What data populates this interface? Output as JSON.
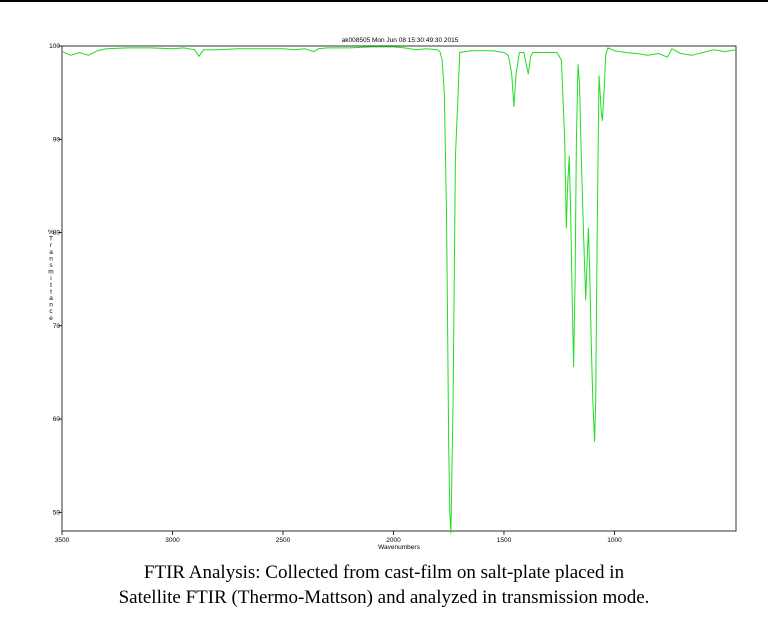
{
  "caption": {
    "line1": "FTIR Analysis: Collected from cast-film on salt-plate placed in",
    "line2": "Satellite FTIR (Thermo-Mattson) and analyzed in transmission mode."
  },
  "chart_data": {
    "type": "line",
    "title": "ak008505   Mon Jun 08 15:30:49:30 2015",
    "xlabel": "Wavenumbers",
    "ylabel": "% Transmittance",
    "xlim": [
      3500,
      450
    ],
    "ylim": [
      48,
      100
    ],
    "x_reversed": true,
    "grid": false,
    "line_color": "#22dd22",
    "x_ticks": [
      3500,
      3000,
      2500,
      2000,
      1500,
      1000
    ],
    "y_ticks": [
      50,
      60,
      70,
      80,
      90,
      100
    ],
    "series": [
      {
        "x": [
          3500,
          3460,
          3420,
          3380,
          3340,
          3300,
          3200,
          3100,
          3000,
          2950,
          2900,
          2880,
          2860,
          2800,
          2700,
          2600,
          2500,
          2450,
          2400,
          2360,
          2340,
          2300,
          2200,
          2100,
          2000,
          1950,
          1900,
          1850,
          1800,
          1790,
          1780,
          1770,
          1760,
          1755,
          1750,
          1745,
          1740,
          1730,
          1720,
          1700,
          1650,
          1600,
          1550,
          1500,
          1480,
          1465,
          1455,
          1445,
          1430,
          1410,
          1390,
          1380,
          1370,
          1350,
          1300,
          1260,
          1240,
          1225,
          1218,
          1212,
          1205,
          1198,
          1192,
          1185,
          1178,
          1172,
          1165,
          1158,
          1150,
          1140,
          1130,
          1125,
          1118,
          1112,
          1105,
          1098,
          1090,
          1085,
          1078,
          1070,
          1065,
          1060,
          1055,
          1050,
          1045,
          1040,
          1030,
          1010,
          1000,
          950,
          900,
          850,
          800,
          760,
          740,
          700,
          650,
          600,
          550,
          500,
          450
        ],
        "y": [
          99.4,
          99.0,
          99.3,
          99.0,
          99.5,
          99.7,
          99.8,
          99.8,
          99.7,
          99.8,
          99.6,
          98.9,
          99.6,
          99.6,
          99.7,
          99.7,
          99.7,
          99.6,
          99.7,
          99.4,
          99.7,
          99.8,
          99.8,
          99.9,
          99.9,
          99.8,
          99.6,
          99.7,
          99.6,
          99.4,
          98.5,
          95.0,
          82.0,
          70.0,
          57.0,
          50.0,
          47.8,
          62.0,
          88.0,
          99.3,
          99.5,
          99.5,
          99.5,
          99.3,
          99.0,
          97.0,
          93.5,
          97.0,
          99.3,
          99.3,
          97.0,
          98.8,
          99.3,
          99.3,
          99.3,
          99.3,
          98.5,
          90.0,
          80.5,
          85.0,
          88.2,
          82.0,
          74.0,
          65.6,
          75.0,
          90.0,
          98.0,
          96.0,
          88.0,
          80.0,
          72.8,
          76.0,
          80.5,
          76.0,
          68.0,
          62.0,
          57.6,
          62.0,
          80.0,
          96.8,
          95.0,
          93.0,
          92.0,
          93.8,
          96.0,
          99.0,
          99.8,
          99.6,
          99.5,
          99.3,
          99.2,
          99.0,
          99.2,
          98.8,
          99.7,
          99.2,
          99.0,
          99.3,
          99.6,
          99.4,
          99.6
        ]
      }
    ]
  }
}
